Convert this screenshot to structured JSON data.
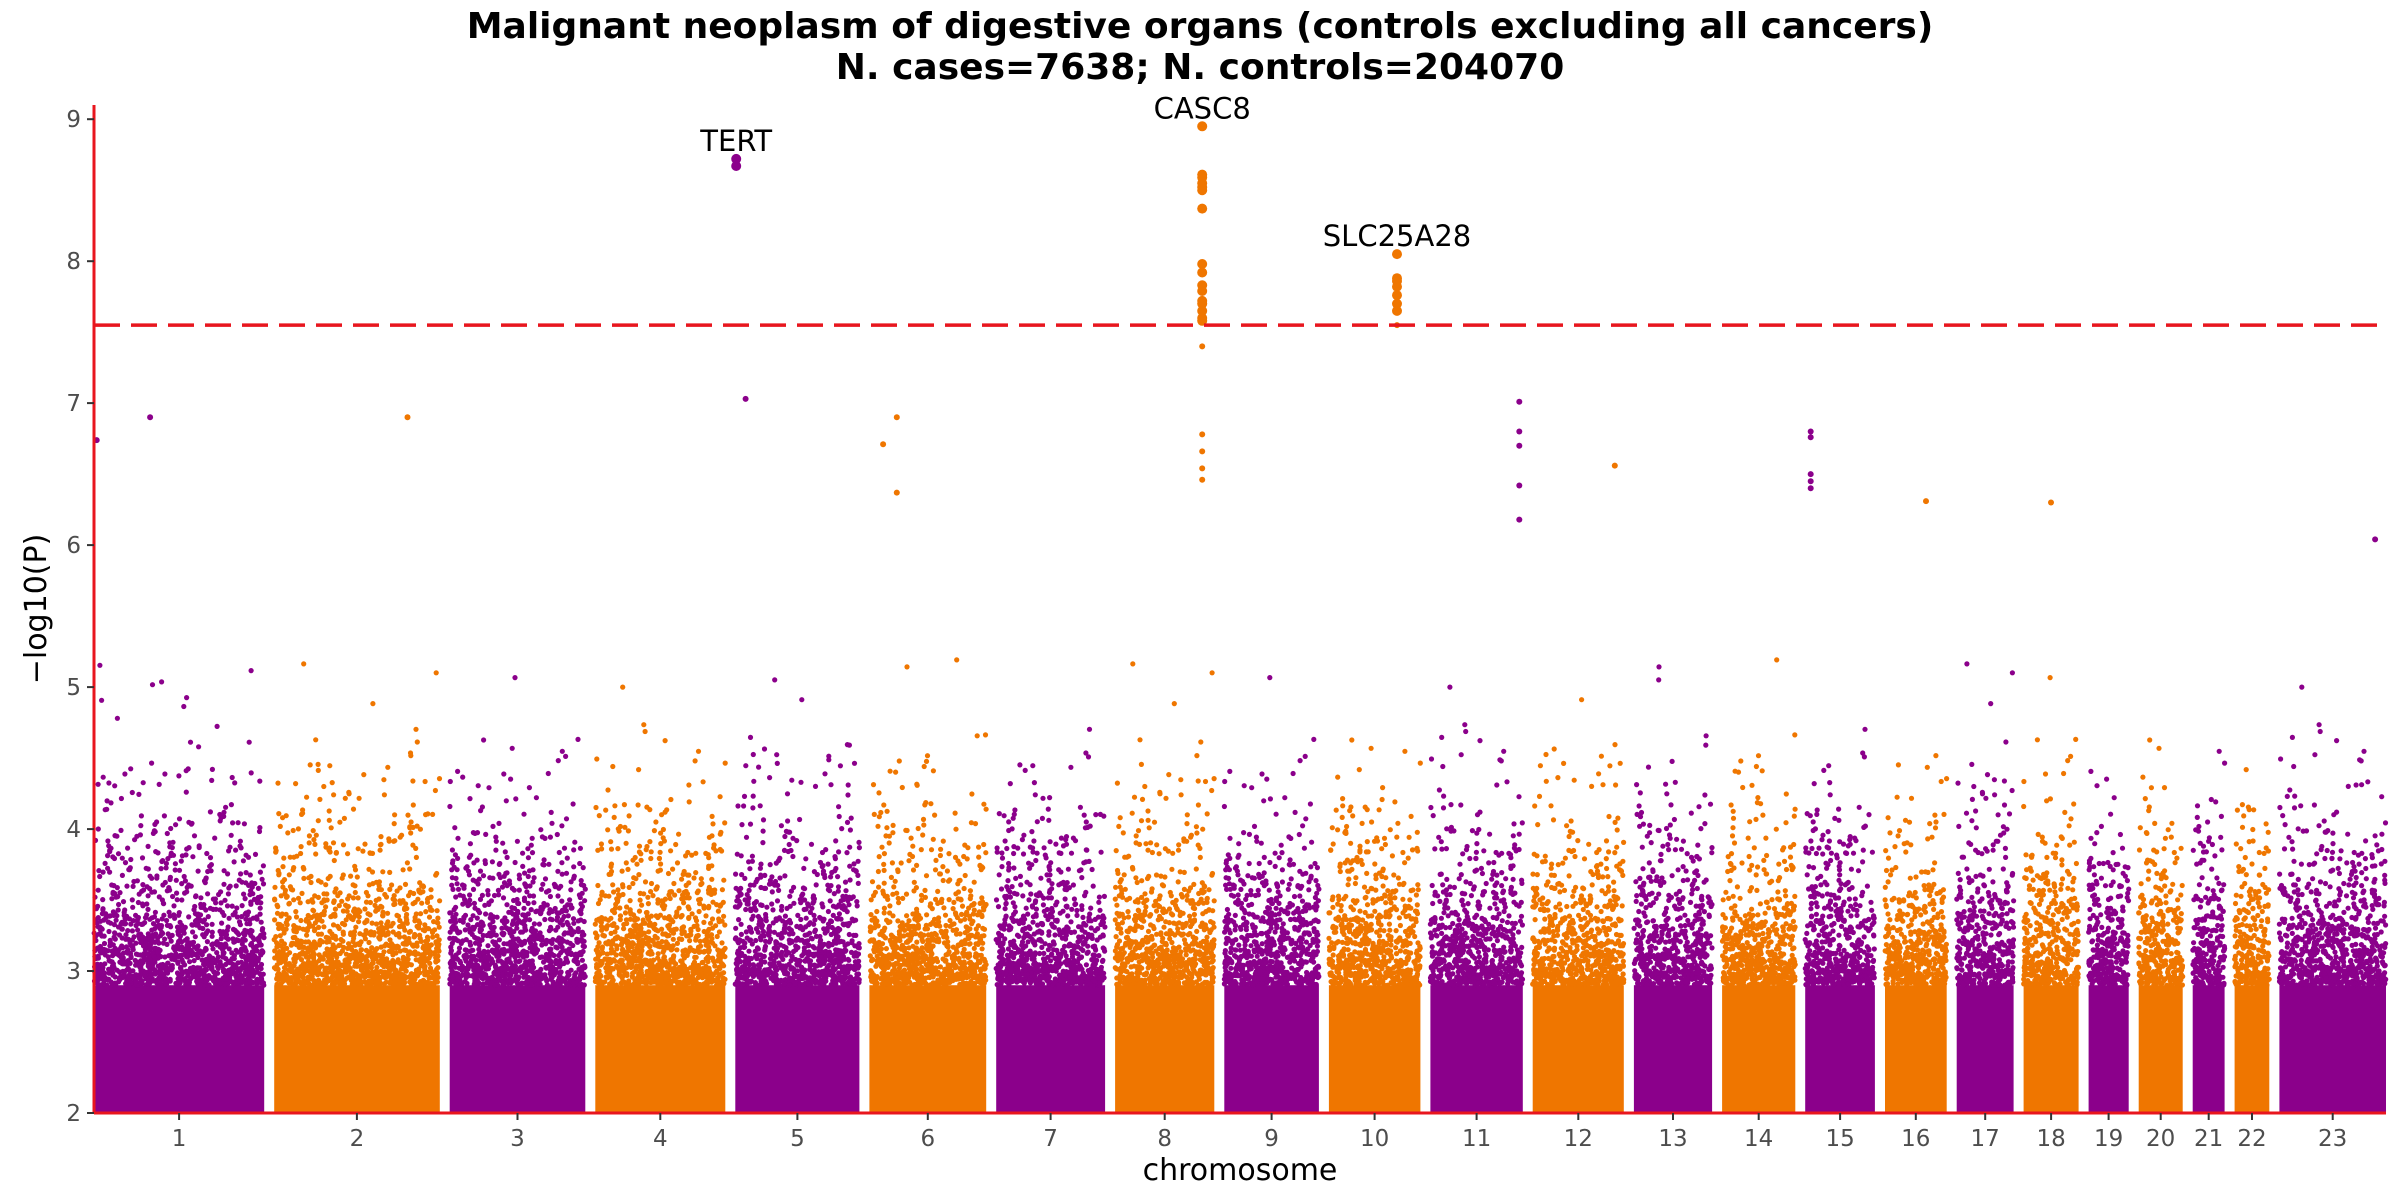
{
  "chart_data": {
    "type": "scatter",
    "title": "Malignant neoplasm of digestive organs (controls excluding all cancers)",
    "subtitle": "N. cases=7638; N. controls=204070",
    "xlabel": "chromosome",
    "ylabel": "−log10(P)",
    "ylim": [
      2,
      9.1
    ],
    "y_ticks": [
      2,
      3,
      4,
      5,
      6,
      7,
      8,
      9
    ],
    "significance_threshold": 7.55,
    "grid": false,
    "colors": {
      "odd_chromosomes": "#8b008b",
      "even_chromosomes": "#ef7600",
      "threshold_line": "#e8161e",
      "axis": "#e8161e"
    },
    "chromosomes": [
      {
        "label": "1",
        "length": 248.9
      },
      {
        "label": "2",
        "length": 242.2
      },
      {
        "label": "3",
        "length": 198.3
      },
      {
        "label": "4",
        "length": 190.2
      },
      {
        "label": "5",
        "length": 181.5
      },
      {
        "label": "6",
        "length": 170.8
      },
      {
        "label": "7",
        "length": 159.3
      },
      {
        "label": "8",
        "length": 145.1
      },
      {
        "label": "9",
        "length": 138.4
      },
      {
        "label": "10",
        "length": 133.8
      },
      {
        "label": "11",
        "length": 135.1
      },
      {
        "label": "12",
        "length": 133.3
      },
      {
        "label": "13",
        "length": 114.4
      },
      {
        "label": "14",
        "length": 107.0
      },
      {
        "label": "15",
        "length": 102.0
      },
      {
        "label": "16",
        "length": 90.3
      },
      {
        "label": "17",
        "length": 83.3
      },
      {
        "label": "18",
        "length": 80.4
      },
      {
        "label": "19",
        "length": 58.6
      },
      {
        "label": "20",
        "length": 64.4
      },
      {
        "label": "21",
        "length": 46.7
      },
      {
        "label": "22",
        "length": 50.8
      },
      {
        "label": "23",
        "length": 156.0
      }
    ],
    "annotations": [
      {
        "gene": "TERT",
        "chromosome": "5",
        "pos_mb": 1.3,
        "neglog10p": 8.72
      },
      {
        "gene": "CASC8",
        "chromosome": "8",
        "pos_mb": 127.4,
        "neglog10p": 8.95
      },
      {
        "gene": "SLC25A28",
        "chromosome": "10",
        "pos_mb": 99.6,
        "neglog10p": 8.05
      }
    ],
    "highlight_points": [
      {
        "chromosome": "5",
        "pos_mb": 1.3,
        "values": [
          8.72,
          8.67
        ]
      },
      {
        "chromosome": "8",
        "pos_mb": 127.4,
        "values": [
          8.95,
          8.61,
          8.59,
          8.55,
          8.52,
          8.5,
          8.37,
          7.98,
          7.92,
          7.83,
          7.79,
          7.72,
          7.7,
          7.65,
          7.6,
          7.58,
          7.4,
          6.78,
          6.66,
          6.54,
          6.46
        ]
      },
      {
        "chromosome": "10",
        "pos_mb": 99.6,
        "values": [
          8.05,
          7.88,
          7.86,
          7.82,
          7.76,
          7.7,
          7.65,
          7.55
        ]
      },
      {
        "chromosome": "1",
        "pos_mb": 4.0,
        "values": [
          6.74
        ]
      },
      {
        "chromosome": "1",
        "pos_mb": 82.0,
        "values": [
          6.9
        ]
      },
      {
        "chromosome": "2",
        "pos_mb": 195.0,
        "values": [
          6.9
        ]
      },
      {
        "chromosome": "5",
        "pos_mb": 15.0,
        "values": [
          7.03
        ]
      },
      {
        "chromosome": "6",
        "pos_mb": 40.0,
        "values": [
          6.9,
          6.37
        ]
      },
      {
        "chromosome": "6",
        "pos_mb": 20.0,
        "values": [
          6.71
        ]
      },
      {
        "chromosome": "11",
        "pos_mb": 130.0,
        "values": [
          7.01,
          6.8,
          6.7,
          6.42,
          6.18
        ]
      },
      {
        "chromosome": "12",
        "pos_mb": 120.0,
        "values": [
          6.56
        ]
      },
      {
        "chromosome": "15",
        "pos_mb": 8.0,
        "values": [
          6.8,
          6.76,
          6.5,
          6.45,
          6.4
        ]
      },
      {
        "chromosome": "16",
        "pos_mb": 60.0,
        "values": [
          6.31
        ]
      },
      {
        "chromosome": "18",
        "pos_mb": 40.0,
        "values": [
          6.3
        ]
      },
      {
        "chromosome": "23",
        "pos_mb": 140.0,
        "values": [
          6.04
        ]
      }
    ]
  }
}
